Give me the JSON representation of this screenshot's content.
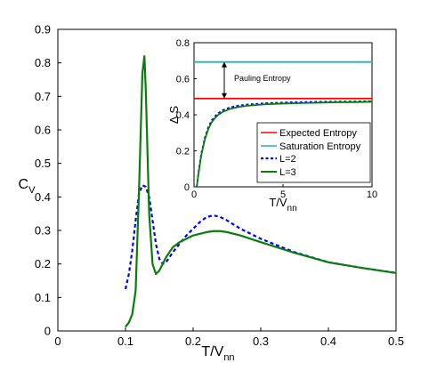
{
  "chart_data": [
    {
      "type": "line",
      "xlabel": "T/V",
      "xlabel_sub": "nn",
      "ylabel": "C",
      "ylabel_sub": "V",
      "xlim": [
        0,
        0.5
      ],
      "ylim": [
        0,
        0.9
      ],
      "x_ticks": [
        "0",
        "0.1",
        "0.2",
        "0.3",
        "0.4",
        "0.5"
      ],
      "y_ticks": [
        "0",
        "0.1",
        "0.2",
        "0.3",
        "0.4",
        "0.5",
        "0.6",
        "0.7",
        "0.8",
        "0.9"
      ],
      "grid": false,
      "series": [
        {
          "name": "L=2",
          "color": "#0000ff",
          "dash": "dotted",
          "x": [
            0.1,
            0.105,
            0.11,
            0.115,
            0.12,
            0.125,
            0.13,
            0.135,
            0.14,
            0.145,
            0.15,
            0.155,
            0.16,
            0.17,
            0.18,
            0.19,
            0.2,
            0.21,
            0.22,
            0.23,
            0.24,
            0.25,
            0.27,
            0.3,
            0.35,
            0.4,
            0.45,
            0.5
          ],
          "y": [
            0.125,
            0.17,
            0.24,
            0.33,
            0.41,
            0.435,
            0.43,
            0.4,
            0.33,
            0.26,
            0.215,
            0.2,
            0.205,
            0.235,
            0.26,
            0.285,
            0.305,
            0.325,
            0.34,
            0.345,
            0.34,
            0.33,
            0.305,
            0.275,
            0.235,
            0.205,
            0.188,
            0.173
          ]
        },
        {
          "name": "L=3",
          "color": "#0a7d0a",
          "dash": "solid",
          "x": [
            0.1,
            0.105,
            0.11,
            0.115,
            0.12,
            0.125,
            0.128,
            0.13,
            0.135,
            0.14,
            0.145,
            0.15,
            0.16,
            0.17,
            0.18,
            0.19,
            0.2,
            0.21,
            0.22,
            0.23,
            0.24,
            0.25,
            0.27,
            0.3,
            0.35,
            0.4,
            0.45,
            0.5
          ],
          "y": [
            0.012,
            0.025,
            0.05,
            0.12,
            0.42,
            0.77,
            0.82,
            0.72,
            0.35,
            0.2,
            0.17,
            0.18,
            0.22,
            0.25,
            0.265,
            0.275,
            0.285,
            0.29,
            0.295,
            0.298,
            0.298,
            0.295,
            0.285,
            0.265,
            0.233,
            0.205,
            0.188,
            0.173
          ]
        }
      ]
    },
    {
      "type": "line",
      "xlabel": "T/V",
      "xlabel_sub": "nn",
      "ylabel": "Δ S",
      "xlim": [
        0,
        10
      ],
      "ylim": [
        0,
        0.8
      ],
      "x_ticks": [
        "0",
        "5",
        "10"
      ],
      "y_ticks": [
        "0",
        "0.2",
        "0.4",
        "0.6",
        "0.8"
      ],
      "grid": false,
      "legend_position": "bottom-right",
      "annotation": "Pauling Entropy",
      "annotation_arrow": {
        "x": 1.7,
        "y_from": 0.49,
        "y_to": 0.693
      },
      "series": [
        {
          "name": "Expected Entropy",
          "color": "#ff0000",
          "dash": "solid",
          "x": [
            0,
            10
          ],
          "y": [
            0.49,
            0.49
          ]
        },
        {
          "name": "Saturation Entropy",
          "color": "#20b2aa",
          "dash": "solid",
          "x": [
            0,
            10
          ],
          "y": [
            0.693,
            0.693
          ]
        },
        {
          "name": "L=2",
          "color": "#0000ff",
          "dash": "dotted",
          "x": [
            0.15,
            0.25,
            0.4,
            0.6,
            0.8,
            1.0,
            1.3,
            1.6,
            2.0,
            2.5,
            3.0,
            4.0,
            5.0,
            6.0,
            7.0,
            8.0,
            9.0,
            10.0
          ],
          "y": [
            0.0,
            0.08,
            0.18,
            0.27,
            0.33,
            0.37,
            0.405,
            0.425,
            0.44,
            0.451,
            0.457,
            0.464,
            0.468,
            0.47,
            0.472,
            0.473,
            0.474,
            0.475
          ]
        },
        {
          "name": "L=3",
          "color": "#0a7d0a",
          "dash": "solid",
          "x": [
            0.15,
            0.25,
            0.4,
            0.6,
            0.8,
            1.0,
            1.3,
            1.6,
            2.0,
            2.5,
            3.0,
            4.0,
            5.0,
            6.0,
            7.0,
            8.0,
            9.0,
            10.0
          ],
          "y": [
            0.0,
            0.07,
            0.17,
            0.26,
            0.32,
            0.36,
            0.395,
            0.415,
            0.432,
            0.443,
            0.45,
            0.458,
            0.462,
            0.465,
            0.467,
            0.469,
            0.47,
            0.472
          ]
        }
      ]
    }
  ]
}
